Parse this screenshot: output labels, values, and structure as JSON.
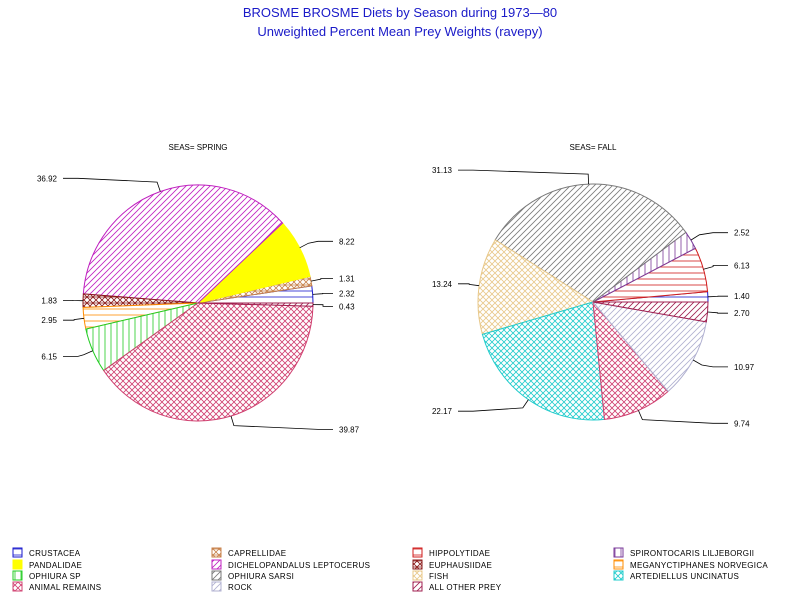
{
  "chart_data": {
    "type": "pie",
    "title": "BROSME BROSME Diets by Season during 1973—80",
    "subtitle": "Unweighted Percent Mean Prey Weights (ravepy)",
    "categories": [
      {
        "id": "crustacea",
        "name": "CRUSTACEA",
        "color": "#1a1acd",
        "pattern": "hline"
      },
      {
        "id": "caprellidae",
        "name": "CAPRELLIDAE",
        "color": "#c8824b",
        "pattern": "xhatch"
      },
      {
        "id": "hippolytidae",
        "name": "HIPPOLYTIDAE",
        "color": "#d01c1c",
        "pattern": "hline"
      },
      {
        "id": "spirontocaris",
        "name": "SPIRONTOCARIS LILJEBORGII",
        "color": "#7a3a9a",
        "pattern": "vline"
      },
      {
        "id": "pandalidae",
        "name": "PANDALIDAE",
        "color": "#ffff00",
        "pattern": "solid"
      },
      {
        "id": "dichelopandalus",
        "name": "DICHELOPANDALUS LEPTOCERUS",
        "color": "#c020c0",
        "pattern": "diag"
      },
      {
        "id": "euphausiidae",
        "name": "EUPHAUSIIDAE",
        "color": "#8a1a1a",
        "pattern": "xhatch"
      },
      {
        "id": "meganyctiphanes",
        "name": "MEGANYCTIPHANES NORVEGICA",
        "color": "#ff8c00",
        "pattern": "hline"
      },
      {
        "id": "ophiura-sp",
        "name": "OPHIURA SP",
        "color": "#22cc22",
        "pattern": "vline"
      },
      {
        "id": "ophiura-sarsi",
        "name": "OPHIURA SARSI",
        "color": "#7a7a7a",
        "pattern": "diag"
      },
      {
        "id": "fish",
        "name": "FISH",
        "color": "#e8c88a",
        "pattern": "grid"
      },
      {
        "id": "artediellus",
        "name": "ARTEDIELLUS UNCINATUS",
        "color": "#22cccc",
        "pattern": "grid"
      },
      {
        "id": "animal-remains",
        "name": "ANIMAL REMAINS",
        "color": "#d04070",
        "pattern": "grid"
      },
      {
        "id": "rock",
        "name": "ROCK",
        "color": "#b0b0d0",
        "pattern": "diag"
      },
      {
        "id": "all-other-prey",
        "name": "ALL OTHER PREY",
        "color": "#a02050",
        "pattern": "diag"
      }
    ],
    "pies": [
      {
        "label": "SEAS= SPRING",
        "slices": [
          {
            "category": "crustacea",
            "value": 2.32
          },
          {
            "category": "caprellidae",
            "value": 1.31
          },
          {
            "category": "pandalidae",
            "value": 8.22
          },
          {
            "category": "dichelopandalus",
            "value": 36.92
          },
          {
            "category": "euphausiidae",
            "value": 1.83
          },
          {
            "category": "meganyctiphanes",
            "value": 2.95
          },
          {
            "category": "ophiura-sp",
            "value": 6.15
          },
          {
            "category": "animal-remains",
            "value": 39.87
          },
          {
            "category": "all-other-prey",
            "value": 0.43
          }
        ]
      },
      {
        "label": "SEAS= FALL",
        "slices": [
          {
            "category": "crustacea",
            "value": 1.4
          },
          {
            "category": "hippolytidae",
            "value": 6.13
          },
          {
            "category": "spirontocaris",
            "value": 2.52
          },
          {
            "category": "ophiura-sarsi",
            "value": 31.13
          },
          {
            "category": "fish",
            "value": 13.24
          },
          {
            "category": "artediellus",
            "value": 22.17
          },
          {
            "category": "animal-remains",
            "value": 9.74
          },
          {
            "category": "rock",
            "value": 10.97
          },
          {
            "category": "all-other-prey",
            "value": 2.7
          }
        ]
      }
    ]
  }
}
